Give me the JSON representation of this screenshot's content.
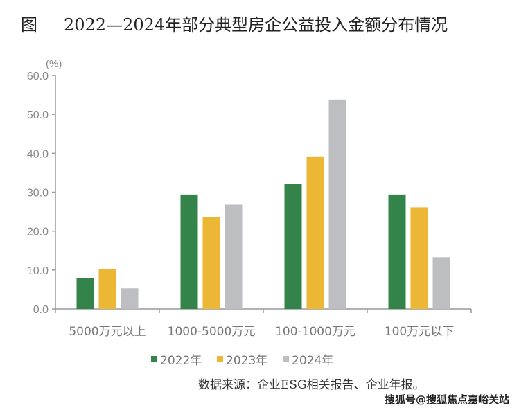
{
  "title": {
    "prefix": "图",
    "text": "2022—2024年部分典型房企公益投入金额分布情况"
  },
  "source": "数据来源：企业ESG相关报告、企业年报。",
  "watermark": "搜狐号@搜狐焦点嘉峪关站",
  "chart_data": {
    "type": "bar",
    "ylabel": "(%)",
    "ylim": [
      0,
      60
    ],
    "yticks": [
      "0.0",
      "10.0",
      "20.0",
      "30.0",
      "40.0",
      "50.0",
      "60.0"
    ],
    "grid": false,
    "legend": "bottom",
    "categories": [
      "5000万元以上",
      "1000-5000万元",
      "100-1000万元",
      "100万元以下"
    ],
    "series": [
      {
        "name": "2022年",
        "color": "#33834a",
        "values": [
          7.9,
          29.4,
          32.2,
          29.4
        ]
      },
      {
        "name": "2023年",
        "color": "#ebb734",
        "values": [
          10.2,
          23.6,
          39.2,
          26.1
        ]
      },
      {
        "name": "2024年",
        "color": "#bdbec2",
        "values": [
          5.3,
          26.8,
          53.8,
          13.3
        ]
      }
    ]
  }
}
